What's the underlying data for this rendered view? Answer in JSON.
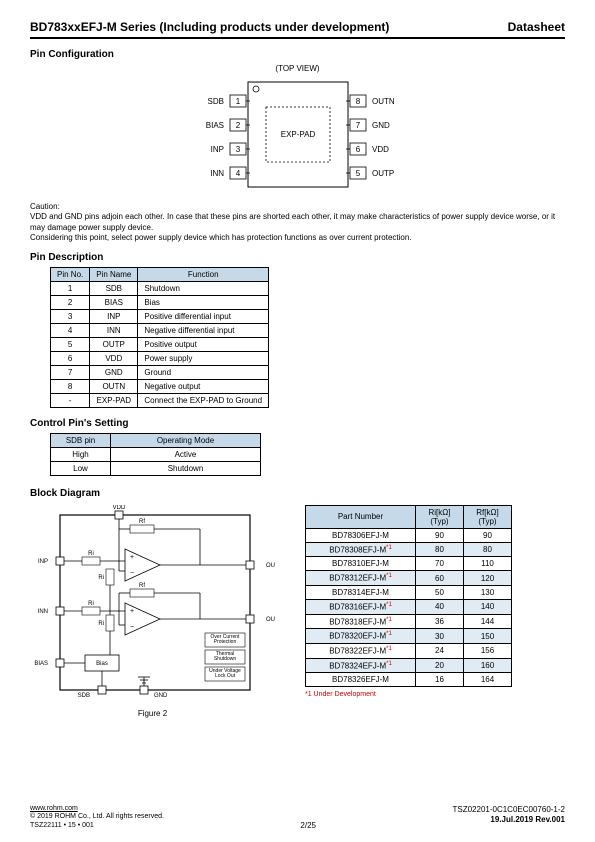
{
  "header": {
    "title": "BD783xxEFJ-M Series (Including products under development)",
    "doc_type": "Datasheet"
  },
  "sections": {
    "pin_config_title": "Pin Configuration",
    "pin_desc_title": "Pin Description",
    "ctrl_pin_title": "Control Pin's Setting",
    "block_diag_title": "Block Diagram"
  },
  "pin_diagram": {
    "top_view": "(TOP VIEW)",
    "center_label": "EXP-PAD",
    "left_pins": [
      {
        "num": "1",
        "name": "SDB"
      },
      {
        "num": "2",
        "name": "BIAS"
      },
      {
        "num": "3",
        "name": "INP"
      },
      {
        "num": "4",
        "name": "INN"
      }
    ],
    "right_pins": [
      {
        "num": "8",
        "name": "OUTN"
      },
      {
        "num": "7",
        "name": "GND"
      },
      {
        "num": "6",
        "name": "VDD"
      },
      {
        "num": "5",
        "name": "OUTP"
      }
    ]
  },
  "caution": {
    "label": "Caution:",
    "line1": "VDD and GND pins adjoin each other. In case that these pins are shorted each other, it may make characteristics of power supply device worse, or it may damage power supply device.",
    "line2": "Considering this point, select power supply device which has protection functions as over current protection."
  },
  "pin_table": {
    "headers": [
      "Pin No.",
      "Pin Name",
      "Function"
    ],
    "rows": [
      [
        "1",
        "SDB",
        "Shutdown"
      ],
      [
        "2",
        "BIAS",
        "Bias"
      ],
      [
        "3",
        "INP",
        "Positive differential input"
      ],
      [
        "4",
        "INN",
        "Negative differential input"
      ],
      [
        "5",
        "OUTP",
        "Positive output"
      ],
      [
        "6",
        "VDD",
        "Power supply"
      ],
      [
        "7",
        "GND",
        "Ground"
      ],
      [
        "8",
        "OUTN",
        "Negative output"
      ],
      [
        "-",
        "EXP-PAD",
        "Connect the EXP-PAD to Ground"
      ]
    ]
  },
  "ctrl_table": {
    "headers": [
      "SDB pin",
      "Operating Mode"
    ],
    "rows": [
      [
        "High",
        "Active"
      ],
      [
        "Low",
        "Shutdown"
      ]
    ]
  },
  "block_diagram": {
    "figure_label": "Figure 2",
    "pins": {
      "vdd": "VDD",
      "inp": "INP",
      "inn": "INN",
      "bias": "BIAS",
      "sdb": "SDB",
      "gnd": "GND",
      "outp": "OUTP",
      "outn": "OUTN"
    },
    "labels": {
      "ri": "Ri",
      "rf": "Rf",
      "bias_block": "Bias",
      "ocp": "Over Current Protection",
      "tsd": "Thermal Shutdown",
      "uvlo": "Under Voltage Lock Out"
    }
  },
  "part_table": {
    "headers": [
      "Part Number",
      "Ri[kΩ]\n(Typ)",
      "Rf[kΩ]\n(Typ)"
    ],
    "rows": [
      {
        "pn": "BD78306EFJ-M",
        "ri": "90",
        "rf": "90",
        "dev": false
      },
      {
        "pn": "BD78308EFJ-M",
        "ri": "80",
        "rf": "80",
        "dev": true
      },
      {
        "pn": "BD78310EFJ-M",
        "ri": "70",
        "rf": "110",
        "dev": false
      },
      {
        "pn": "BD78312EFJ-M",
        "ri": "60",
        "rf": "120",
        "dev": true
      },
      {
        "pn": "BD78314EFJ-M",
        "ri": "50",
        "rf": "130",
        "dev": false
      },
      {
        "pn": "BD78316EFJ-M",
        "ri": "40",
        "rf": "140",
        "dev": true
      },
      {
        "pn": "BD78318EFJ-M",
        "ri": "36",
        "rf": "144",
        "dev": true
      },
      {
        "pn": "BD78320EFJ-M",
        "ri": "30",
        "rf": "150",
        "dev": true
      },
      {
        "pn": "BD78322EFJ-M",
        "ri": "24",
        "rf": "156",
        "dev": true
      },
      {
        "pn": "BD78324EFJ-M",
        "ri": "20",
        "rf": "160",
        "dev": true
      },
      {
        "pn": "BD78326EFJ-M",
        "ri": "16",
        "rf": "164",
        "dev": false
      }
    ],
    "footnote": "*1 Under Development",
    "dev_suffix": "*1"
  },
  "footer": {
    "url": "www.rohm.com",
    "copyright": "© 2019 ROHM Co., Ltd. All rights reserved.",
    "tsz_small": "TSZ22111 • 15 • 001",
    "page": "2/25",
    "doc_id": "TSZ02201-0C1C0EC00760-1-2",
    "date_rev": "19.Jul.2019 Rev.001"
  }
}
